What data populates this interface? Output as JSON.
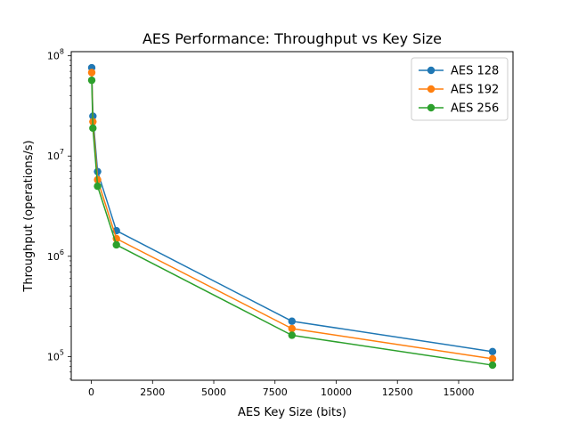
{
  "chart_data": {
    "type": "line",
    "title": "AES Performance: Throughput vs Key Size",
    "xlabel": "AES Key Size (bits)",
    "ylabel": "Throughput (operations/s)",
    "xscale": "linear",
    "yscale": "log",
    "xlim": [
      -820,
      17220
    ],
    "ylim": [
      58000,
      110000000
    ],
    "grid": false,
    "legend_position": "top-right",
    "x_ticks": [
      {
        "value": 0,
        "label": "0"
      },
      {
        "value": 2500,
        "label": "2500"
      },
      {
        "value": 5000,
        "label": "5000"
      },
      {
        "value": 7500,
        "label": "7500"
      },
      {
        "value": 10000,
        "label": "10000"
      },
      {
        "value": 12500,
        "label": "12500"
      },
      {
        "value": 15000,
        "label": "15000"
      }
    ],
    "y_ticks": [
      {
        "value": 100000,
        "base": "10",
        "exp": "5"
      },
      {
        "value": 1000000,
        "base": "10",
        "exp": "6"
      },
      {
        "value": 10000000,
        "base": "10",
        "exp": "7"
      },
      {
        "value": 100000000,
        "base": "10",
        "exp": "8"
      }
    ],
    "x": [
      16,
      64,
      256,
      1024,
      8192,
      16384
    ],
    "series": [
      {
        "name": "AES 128",
        "color": "#1f77b4",
        "values": [
          76000000,
          25000000,
          7000000,
          1800000,
          225000,
          112000
        ]
      },
      {
        "name": "AES 192",
        "color": "#ff7f0e",
        "values": [
          68000000,
          22000000,
          5800000,
          1500000,
          190000,
          95000
        ]
      },
      {
        "name": "AES 256",
        "color": "#2ca02c",
        "values": [
          57000000,
          19000000,
          5000000,
          1300000,
          163000,
          82000
        ]
      }
    ]
  }
}
